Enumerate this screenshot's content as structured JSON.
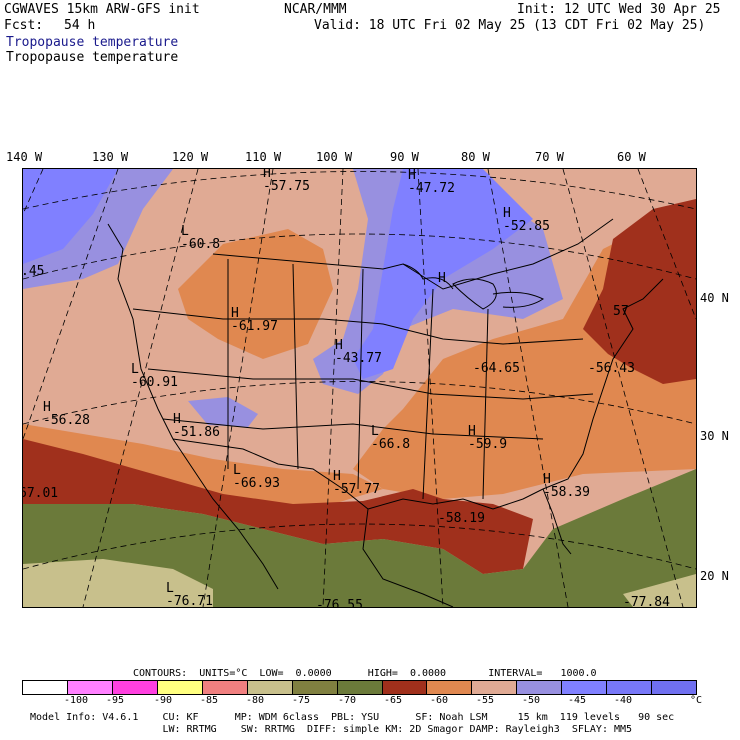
{
  "header": {
    "model": "CGWAVES 15km ARW-GFS init",
    "center": "NCAR/MMM",
    "init": "Init: 12 UTC Wed 30 Apr 25",
    "fcst_label": "Fcst:",
    "fcst_value": "54 h",
    "valid": "Valid: 18 UTC Fri 02 May 25 (13 CDT Fri 02 May 25)",
    "field_title_1": "Tropopause temperature",
    "field_title_2": "Tropopause temperature"
  },
  "lon_labels": [
    "140 W",
    "130 W",
    "120 W",
    "110 W",
    "100 W",
    "90 W",
    "80 W",
    "70 W",
    "60 W"
  ],
  "lat_labels": [
    "40 N",
    "30 N",
    "20 N"
  ],
  "markers": [
    {
      "type": "H",
      "value": "-57.75"
    },
    {
      "type": "H",
      "value": "-47.72"
    },
    {
      "type": "H",
      "value": "-52.85"
    },
    {
      "type": "L",
      "value": "-60.8"
    },
    {
      "type": "",
      "value": ".45"
    },
    {
      "type": "H",
      "value": "-61.97"
    },
    {
      "type": "H",
      "value": "-43.77"
    },
    {
      "type": "H",
      "value": ""
    },
    {
      "type": "",
      "value": "57"
    },
    {
      "type": "L",
      "value": "-60.91"
    },
    {
      "type": "",
      "value": "-64.65"
    },
    {
      "type": "",
      "value": "-56.43"
    },
    {
      "type": "H",
      "value": "-56.28"
    },
    {
      "type": "H",
      "value": "-51.86"
    },
    {
      "type": "L",
      "value": "-66.8"
    },
    {
      "type": "H",
      "value": "-59.9"
    },
    {
      "type": "",
      "value": "67.01"
    },
    {
      "type": "L",
      "value": "-66.93"
    },
    {
      "type": "H",
      "value": "-57.77"
    },
    {
      "type": "H",
      "value": "-58.39"
    },
    {
      "type": "",
      "value": "-58.19"
    },
    {
      "type": "L",
      "value": "-76.71"
    },
    {
      "type": "",
      "value": "-76.55"
    },
    {
      "type": "",
      "value": "-77.84"
    }
  ],
  "contours": {
    "line": "CONTOURS:  UNITS=°C  LOW=  0.0000      HIGH=  0.0000       INTERVAL=   1000.0"
  },
  "colorbar": {
    "colors": [
      "#ffffff",
      "#ff80ff",
      "#ff40e0",
      "#ffff80",
      "#f08080",
      "#c8c08c",
      "#808040",
      "#6b7a3a",
      "#a0301c",
      "#e08850",
      "#e0aa94",
      "#9890e0",
      "#8080ff",
      "#7878f8",
      "#7070f0"
    ],
    "labels": [
      "-100",
      "-95",
      "-90",
      "-85",
      "-80",
      "-75",
      "-70",
      "-65",
      "-60",
      "-55",
      "-50",
      "-45",
      "-40",
      "°C"
    ]
  },
  "footer": {
    "line1": "Model Info: V4.6.1    CU: KF      MP: WDM 6class  PBL: YSU      SF: Noah LSM     15 km  119 levels   90 sec",
    "line2": "                      LW: RRTMG    SW: RRTMG  DIFF: simple KM: 2D Smagor DAMP: Rayleigh3  SFLAY: MM5"
  }
}
